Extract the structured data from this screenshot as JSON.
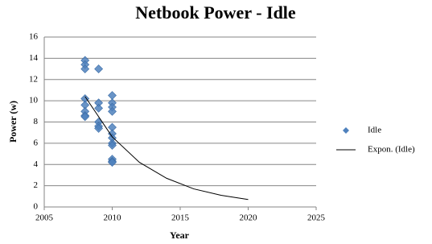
{
  "chart_data": {
    "type": "scatter",
    "title": "Netbook Power - Idle",
    "x_label": "Year",
    "y_label": "Power (w)",
    "xlim": [
      2005,
      2025
    ],
    "xticks": [
      2005,
      2010,
      2015,
      2020,
      2025
    ],
    "ylim": [
      0,
      16
    ],
    "yticks": [
      0,
      2,
      4,
      6,
      8,
      10,
      12,
      14,
      16
    ],
    "grid": true,
    "legend": "right",
    "series": [
      {
        "name": "Idle",
        "color": "#4f81bd",
        "x": [
          2008,
          2008,
          2008,
          2008,
          2008,
          2008,
          2008,
          2008,
          2009,
          2009,
          2009,
          2009,
          2009,
          2009,
          2010,
          2010,
          2010,
          2010,
          2010,
          2010,
          2010,
          2010,
          2010,
          2010,
          2010,
          2010
        ],
        "values": [
          13.8,
          13.4,
          13.0,
          10.2,
          9.6,
          9.0,
          8.6,
          8.5,
          13.0,
          9.8,
          9.3,
          8.0,
          7.6,
          7.4,
          10.5,
          9.8,
          9.4,
          9.0,
          7.5,
          6.9,
          6.5,
          6.0,
          5.8,
          4.5,
          4.3,
          4.2
        ]
      },
      {
        "name": "Expon. (Idle)",
        "color": "#000000",
        "type": "line",
        "x": [
          2008,
          2010,
          2012,
          2014,
          2016,
          2018,
          2020
        ],
        "values": [
          10.4,
          6.6,
          4.2,
          2.7,
          1.7,
          1.1,
          0.7
        ]
      }
    ]
  }
}
